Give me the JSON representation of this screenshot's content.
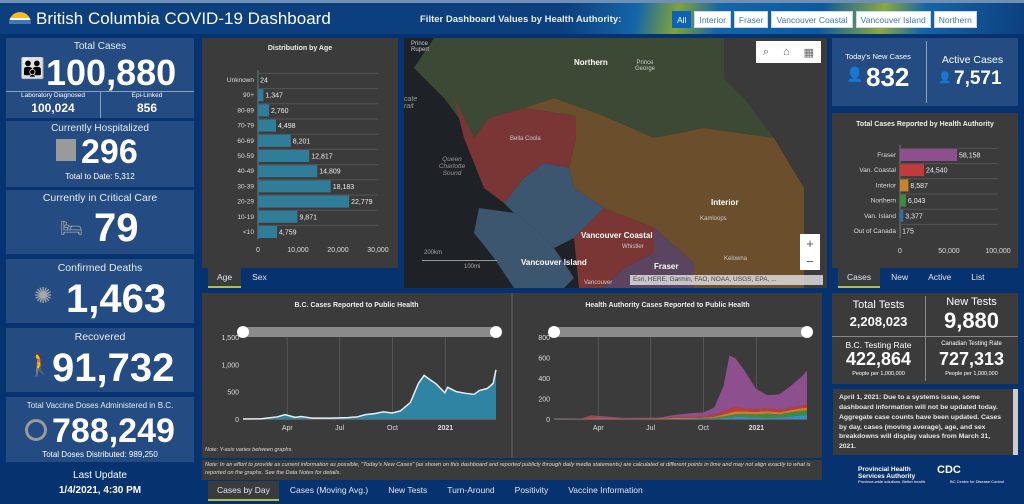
{
  "header": {
    "title": "British Columbia COVID-19 Dashboard",
    "filter_label": "Filter Dashboard Values by Health Authority:",
    "filters": [
      "All",
      "Interior",
      "Fraser",
      "Vancouver Coastal",
      "Vancouver Island",
      "Northern"
    ],
    "active_filter": "All"
  },
  "left": {
    "total_cases": {
      "label": "Total Cases",
      "value": "100,880",
      "lab_label": "Laboratory Diagnosed",
      "lab_value": "100,024",
      "epi_label": "Epi-Linked",
      "epi_value": "856",
      "icon": "people-icon"
    },
    "hospitalized": {
      "label": "Currently Hospitalized",
      "value": "296",
      "sub": "Total to Date: 5,312",
      "icon": "hospital-icon"
    },
    "critical": {
      "label": "Currently in Critical Care",
      "value": "79",
      "icon": "hospital-bed-icon"
    },
    "deaths": {
      "label": "Confirmed Deaths",
      "value": "1,463",
      "icon": "virus-icon"
    },
    "recovered": {
      "label": "Recovered",
      "value": "91,732",
      "icon": "walking-person-icon"
    },
    "vaccine": {
      "label": "Total Vaccine Doses Administered in B.C.",
      "value": "788,249",
      "sub": "Total Doses Distributed: 989,250",
      "icon": "vaccine-icon"
    },
    "last_update": {
      "label": "Last Update",
      "value": "1/4/2021, 4:30 PM"
    }
  },
  "age_tabs": [
    "Age",
    "Sex"
  ],
  "ha_tabs": [
    "Cases",
    "New",
    "Active",
    "List"
  ],
  "bottom_tabs": [
    "Cases by Day",
    "Cases (Moving Avg.)",
    "New Tests",
    "Turn-Around",
    "Positivity",
    "Vaccine Information"
  ],
  "map": {
    "labels": {
      "prince_rupert": "Prince Rupert",
      "northern": "Northern",
      "prince_george": "Prince George",
      "bella_coola": "Bella Coola",
      "queen_charlotte": "Queen Charlotte Sound",
      "strait": "cate rait",
      "interior": "Interior",
      "kamloops": "Kamloops",
      "van_coastal": "Vancouver Coastal",
      "whistler": "Whistler",
      "van_island": "Vancouver Island",
      "fraser": "Fraser",
      "kelowna": "Kelowna",
      "vancouver": "Vancouver",
      "scale_km": "200km",
      "scale_mi": "100mi"
    },
    "attribution": "Esri, HERE, Garmin, FAO, NOAA, USGS, EPA, ...",
    "zoom_in": "+",
    "zoom_out": "−"
  },
  "right": {
    "new_cases": {
      "label": "Today's New Cases",
      "value": "832"
    },
    "active_cases": {
      "label": "Active Cases",
      "value": "7,571"
    },
    "tests": {
      "total_label": "Total Tests",
      "total_value": "2,208,023",
      "new_label": "New Tests",
      "new_value": "9,880",
      "bc_rate_label": "B.C. Testing Rate",
      "bc_rate_value": "422,864",
      "bc_rate_unit": "People per 1,000,000",
      "can_rate_label": "Canadian Testing Rate",
      "can_rate_value": "727,313",
      "can_rate_unit": "People per 1,000,000"
    },
    "notice": "April 1, 2021: Due to a systems issue, some dashboard information will not be updated today. Aggregate case counts have been updated. Cases by day, cases (moving average), age, and sex breakdowns will display values from March 31, 2021.",
    "logos": {
      "phsa": "Provincial Health Services Authority",
      "phsa_tag": "Province-wide solutions. Better health.",
      "bccdc": "BC Centre for Disease Control"
    }
  },
  "notes": {
    "yaxis": "Note: Y-axis varies between graphs.",
    "main": "Note: In an effort to provide as current information as possible, \"Today's New Cases\" (as shown on this dashboard and reported publicly through daily media statements) are calculated at different points in time and may not align exactly to what is reported on the graphs. See the Data Notes for details."
  },
  "chart_data": [
    {
      "type": "bar",
      "orientation": "horizontal",
      "title": "Distribution by Age",
      "categories": [
        "Unknown",
        "90+",
        "80-89",
        "70-79",
        "60-69",
        "50-59",
        "40-49",
        "30-39",
        "20-29",
        "10-19",
        "<10"
      ],
      "values": [
        24,
        1347,
        2760,
        4498,
        8201,
        12817,
        14809,
        18183,
        22779,
        9871,
        4759
      ],
      "value_labels": [
        "24",
        "1,347",
        "2,760",
        "4,498",
        "8,201",
        "12,817",
        "14,809",
        "18,183",
        "22,779",
        "9,871",
        "4,759"
      ],
      "xlim": [
        0,
        30000
      ],
      "xticks": [
        "0",
        "10,000",
        "20,000",
        "30,000"
      ],
      "color": "#2f7d99"
    },
    {
      "type": "bar",
      "orientation": "horizontal",
      "title": "Total Cases Reported by Health Authority",
      "categories": [
        "Fraser",
        "Van. Coastal",
        "Interior",
        "Northern",
        "Van. Island",
        "Out of Canada"
      ],
      "values": [
        58158,
        24540,
        8587,
        6043,
        3377,
        175
      ],
      "value_labels": [
        "58,158",
        "24,540",
        "8,587",
        "6,043",
        "3,377",
        "175"
      ],
      "colors": [
        "#8e4f8e",
        "#c23b3b",
        "#c9822a",
        "#3f8a3f",
        "#2f6fb0",
        "#888888"
      ],
      "xlim": [
        0,
        100000
      ],
      "xticks": [
        "0",
        "50,000",
        "100,000"
      ]
    },
    {
      "type": "area",
      "title": "B.C. Cases Reported to Public Health",
      "x": [
        "2020-01-15",
        "2020-02-15",
        "2020-03-15",
        "2020-03-28",
        "2020-04-15",
        "2020-04-25",
        "2020-05-15",
        "2020-06-15",
        "2020-07-15",
        "2020-08-01",
        "2020-08-15",
        "2020-09-01",
        "2020-09-15",
        "2020-10-01",
        "2020-10-15",
        "2020-11-01",
        "2020-11-15",
        "2020-11-25",
        "2020-12-05",
        "2020-12-15",
        "2020-12-31",
        "2021-01-05",
        "2021-01-20",
        "2021-02-05",
        "2021-02-20",
        "2021-03-01",
        "2021-03-15",
        "2021-03-25",
        "2021-03-30"
      ],
      "values": [
        0,
        2,
        40,
        80,
        30,
        45,
        15,
        15,
        25,
        40,
        80,
        100,
        130,
        110,
        150,
        300,
        650,
        800,
        720,
        650,
        480,
        580,
        500,
        470,
        450,
        520,
        560,
        650,
        900
      ],
      "ylim": [
        0,
        1500
      ],
      "yticks": [
        "0",
        "500",
        "1,000",
        "1,500"
      ],
      "xticks": [
        "Apr",
        "Jul",
        "Oct",
        "2021"
      ],
      "color": "#2f84a3"
    },
    {
      "type": "area",
      "stacked": true,
      "title": "Health Authority Cases Reported to Public Health",
      "x": [
        "2020-01-15",
        "2020-03-01",
        "2020-03-20",
        "2020-04-15",
        "2020-05-15",
        "2020-07-15",
        "2020-08-15",
        "2020-09-15",
        "2020-10-01",
        "2020-10-20",
        "2020-11-05",
        "2020-11-15",
        "2020-11-25",
        "2020-12-10",
        "2020-12-31",
        "2021-01-20",
        "2021-02-10",
        "2021-03-01",
        "2021-03-20",
        "2021-03-30"
      ],
      "series": [
        {
          "name": "Van. Island",
          "color": "#2f8fd0",
          "values": [
            0,
            0,
            2,
            2,
            0,
            0,
            1,
            2,
            3,
            5,
            10,
            15,
            20,
            20,
            15,
            12,
            15,
            25,
            35,
            40
          ]
        },
        {
          "name": "Northern",
          "color": "#3f8a3f",
          "values": [
            0,
            0,
            1,
            1,
            0,
            1,
            2,
            3,
            5,
            8,
            15,
            20,
            25,
            30,
            30,
            40,
            30,
            40,
            45,
            45
          ]
        },
        {
          "name": "Interior",
          "color": "#c9822a",
          "values": [
            0,
            0,
            2,
            2,
            1,
            3,
            8,
            5,
            5,
            10,
            20,
            25,
            30,
            25,
            25,
            25,
            20,
            20,
            25,
            25
          ]
        },
        {
          "name": "Van. Coastal",
          "color": "#c23b3b",
          "values": [
            0,
            2,
            20,
            10,
            5,
            5,
            10,
            10,
            10,
            20,
            30,
            40,
            40,
            30,
            25,
            25,
            25,
            25,
            25,
            30
          ]
        },
        {
          "name": "Fraser",
          "color": "#8e4f8e",
          "values": [
            0,
            0,
            10,
            10,
            5,
            5,
            20,
            40,
            40,
            70,
            250,
            520,
            480,
            380,
            200,
            130,
            150,
            210,
            280,
            330
          ]
        }
      ],
      "ylim": [
        0,
        800
      ],
      "yticks": [
        "0",
        "200",
        "400",
        "600",
        "800"
      ],
      "xticks": [
        "Apr",
        "Jul",
        "Oct",
        "2021"
      ]
    }
  ]
}
